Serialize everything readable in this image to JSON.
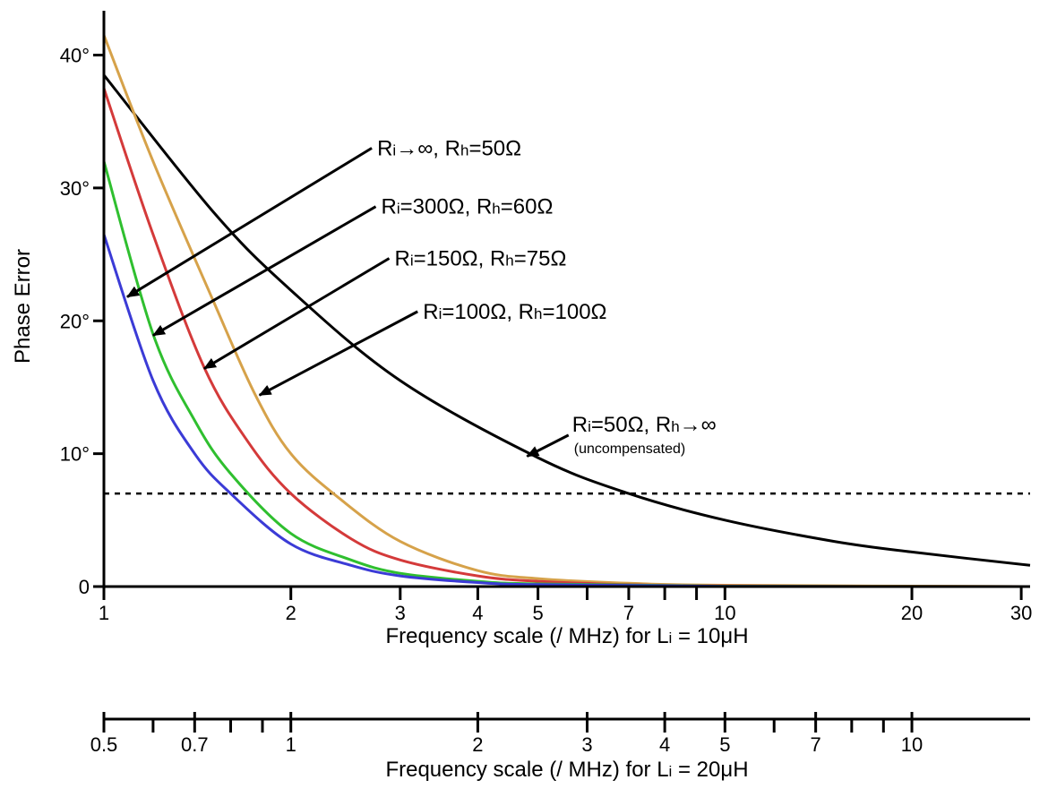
{
  "chart_data": {
    "type": "line",
    "xlabel": "Frequency scale (/ MHz) for Li = 10μH",
    "xlabel_parts": {
      "prefix": "Frequency scale (/ MHz) for L",
      "sub": "i",
      "suffix": " = 10μH"
    },
    "ylabel": "Phase Error",
    "x_scale": "log",
    "xlim": [
      1,
      31
    ],
    "ylim": [
      0,
      43
    ],
    "x_ticks_major": [
      {
        "value": 1,
        "label": "1"
      },
      {
        "value": 2,
        "label": "2"
      },
      {
        "value": 3,
        "label": "3"
      },
      {
        "value": 4,
        "label": "4"
      },
      {
        "value": 5,
        "label": "5"
      },
      {
        "value": 7,
        "label": "7"
      },
      {
        "value": 10,
        "label": "10"
      },
      {
        "value": 20,
        "label": "20"
      },
      {
        "value": 30,
        "label": "30"
      }
    ],
    "x_ticks_minor": [
      6,
      8,
      9
    ],
    "y_ticks": [
      {
        "value": 0,
        "label": "0"
      },
      {
        "value": 10,
        "label": "10°"
      },
      {
        "value": 20,
        "label": "20°"
      },
      {
        "value": 30,
        "label": "30°"
      },
      {
        "value": 40,
        "label": "40°"
      }
    ],
    "secondary_x_axis": {
      "xlabel": "Frequency scale (/ MHz) for Li = 20μH",
      "xlabel_parts": {
        "prefix": "Frequency scale (/ MHz) for L",
        "sub": "i",
        "suffix": " = 20μH"
      },
      "ticks_major": [
        {
          "value": 0.5,
          "label": "0.5"
        },
        {
          "value": 0.7,
          "label": "0.7"
        },
        {
          "value": 1,
          "label": "1"
        },
        {
          "value": 2,
          "label": "2"
        },
        {
          "value": 3,
          "label": "3"
        },
        {
          "value": 4,
          "label": "4"
        },
        {
          "value": 5,
          "label": "5"
        },
        {
          "value": 7,
          "label": "7"
        },
        {
          "value": 10,
          "label": "10"
        }
      ],
      "ticks_minor": [
        0.6,
        0.8,
        0.9,
        6,
        8,
        9
      ]
    },
    "reference_line": {
      "y": 7,
      "style": "dashed"
    },
    "series": [
      {
        "color": "#000000",
        "x": [
          1,
          1.5,
          2,
          3,
          5,
          7,
          10,
          15,
          20,
          31
        ],
        "y": [
          38.5,
          28.2,
          22.3,
          15.5,
          9.7,
          7.0,
          5.0,
          3.4,
          2.6,
          1.6
        ]
      },
      {
        "color": "#d6a24a",
        "x": [
          1,
          1.2,
          1.5,
          1.75,
          2,
          2.4,
          3,
          4,
          5,
          7,
          10,
          31
        ],
        "y": [
          41.5,
          32.0,
          21.5,
          14.5,
          10.0,
          6.6,
          3.4,
          1.2,
          0.6,
          0.25,
          0.1,
          0
        ]
      },
      {
        "color": "#d43a3a",
        "x": [
          1,
          1.2,
          1.45,
          1.7,
          2,
          2.5,
          3,
          4,
          5,
          7,
          10,
          31
        ],
        "y": [
          37.5,
          26.5,
          16.5,
          11.0,
          7.0,
          3.6,
          2.0,
          0.8,
          0.4,
          0.15,
          0.05,
          0
        ]
      },
      {
        "color": "#2fbf2f",
        "x": [
          1,
          1.2,
          1.4,
          1.6,
          2,
          2.5,
          3,
          4,
          5,
          10,
          31
        ],
        "y": [
          32.0,
          19.0,
          12.5,
          8.5,
          4.0,
          2.0,
          1.0,
          0.4,
          0.2,
          0.03,
          0
        ]
      },
      {
        "color": "#3b3bd6",
        "x": [
          1,
          1.2,
          1.4,
          1.6,
          2,
          2.5,
          3,
          4,
          5,
          10,
          31
        ],
        "y": [
          26.5,
          15.5,
          10.0,
          7.0,
          3.2,
          1.6,
          0.8,
          0.3,
          0.15,
          0.02,
          0
        ]
      }
    ],
    "annotations": [
      {
        "label_parts": [
          [
            "R",
            ""
          ],
          [
            "i",
            "sub"
          ],
          [
            "→∞, R",
            ""
          ],
          [
            "h",
            "sub"
          ],
          [
            "=50Ω",
            ""
          ]
        ],
        "arrow_from": [
          2.7,
          33.0
        ],
        "arrow_to": [
          1.09,
          21.8
        ]
      },
      {
        "label_parts": [
          [
            "R",
            ""
          ],
          [
            "i",
            "sub"
          ],
          [
            "=300Ω, R",
            ""
          ],
          [
            "h",
            "sub"
          ],
          [
            "=60Ω",
            ""
          ]
        ],
        "arrow_from": [
          2.74,
          28.6
        ],
        "arrow_to": [
          1.2,
          18.9
        ]
      },
      {
        "label_parts": [
          [
            "R",
            ""
          ],
          [
            "i",
            "sub"
          ],
          [
            "=150Ω, R",
            ""
          ],
          [
            "h",
            "sub"
          ],
          [
            "=75Ω",
            ""
          ]
        ],
        "arrow_from": [
          2.88,
          24.7
        ],
        "arrow_to": [
          1.45,
          16.4
        ]
      },
      {
        "label_parts": [
          [
            "R",
            ""
          ],
          [
            "i",
            "sub"
          ],
          [
            "=100Ω, R",
            ""
          ],
          [
            "h",
            "sub"
          ],
          [
            "=100Ω",
            ""
          ]
        ],
        "arrow_from": [
          3.2,
          20.7
        ],
        "arrow_to": [
          1.78,
          14.4
        ]
      },
      {
        "label_parts": [
          [
            "R",
            ""
          ],
          [
            "i",
            "sub"
          ],
          [
            "=50Ω, R",
            ""
          ],
          [
            "h",
            "sub"
          ],
          [
            "→∞",
            ""
          ]
        ],
        "sublabel": "(uncompensated)",
        "arrow_from": [
          5.6,
          11.4
        ],
        "arrow_to": [
          4.8,
          9.8
        ]
      }
    ]
  }
}
